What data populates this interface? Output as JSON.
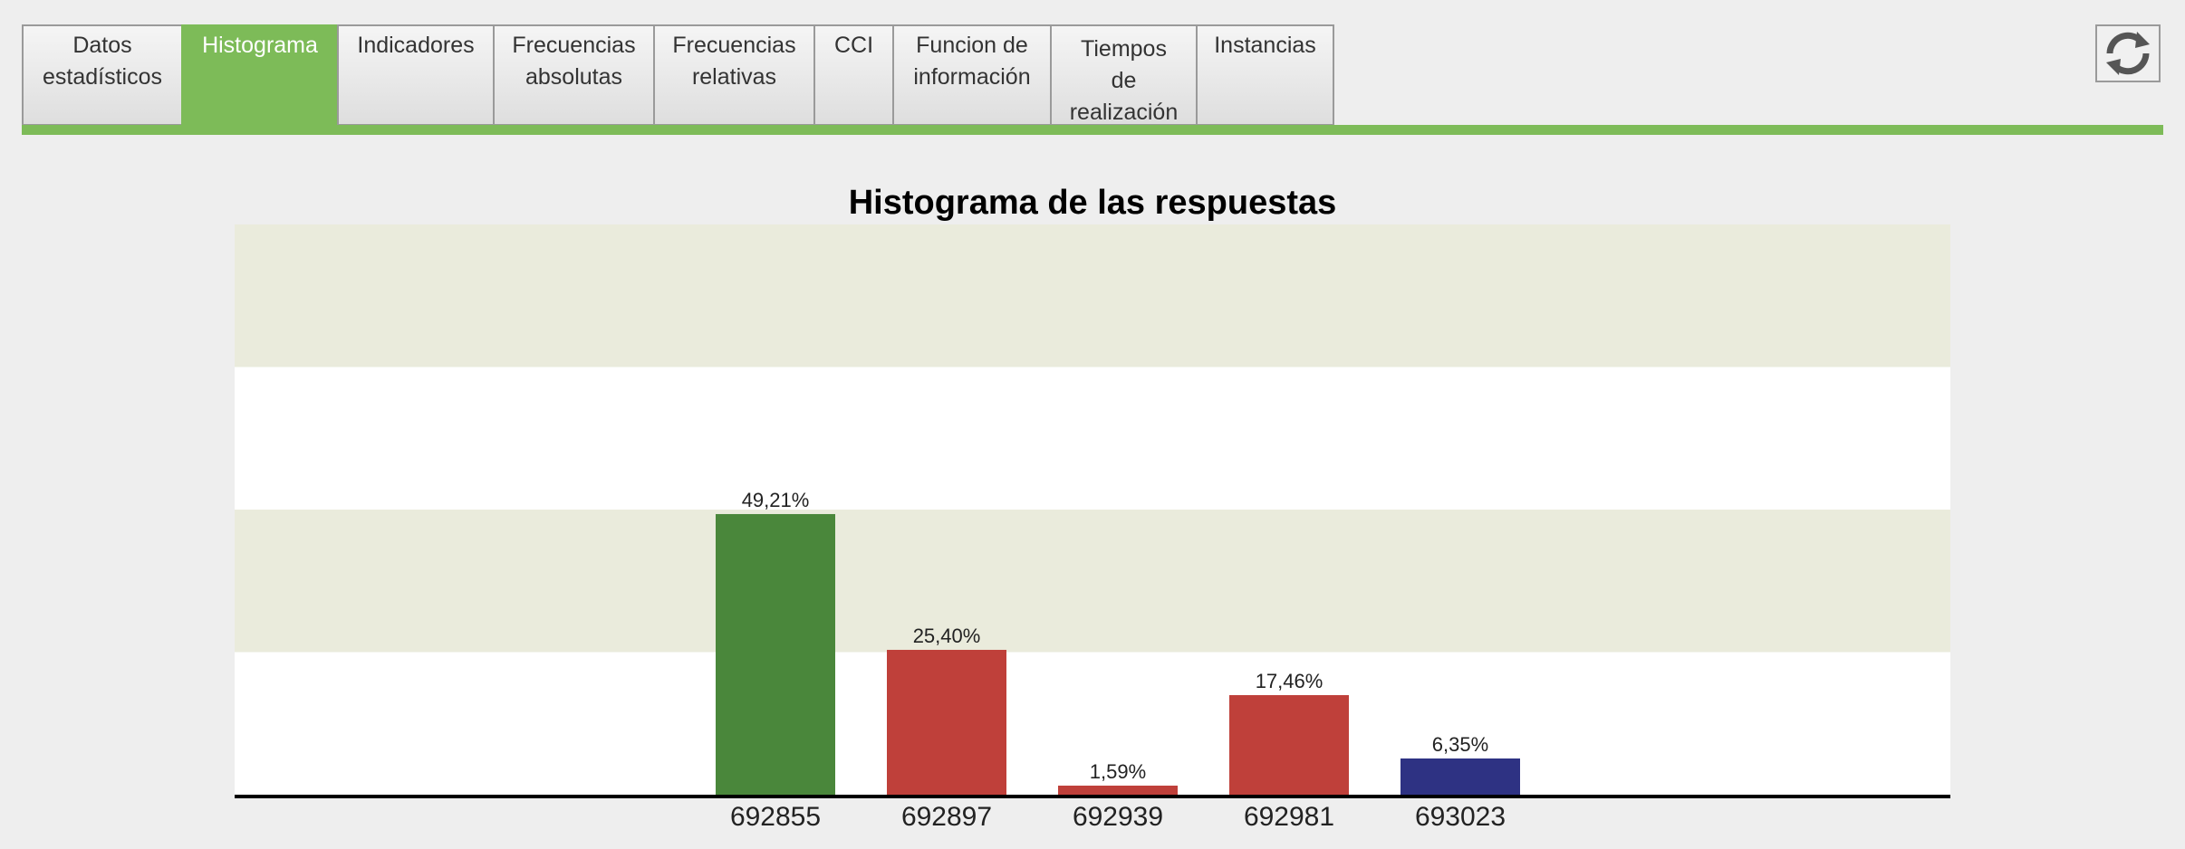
{
  "tabs": [
    {
      "label": "Datos\nestadísticos",
      "active": false
    },
    {
      "label": "Histograma",
      "active": true
    },
    {
      "label": "Indicadores",
      "active": false
    },
    {
      "label": "Frecuencias\nabsolutas",
      "active": false
    },
    {
      "label": "Frecuencias\nrelativas",
      "active": false
    },
    {
      "label": "CCI",
      "active": false
    },
    {
      "label": "Funcion de\ninformación",
      "active": false
    },
    {
      "label": "Tiempos\nde\nrealización",
      "active": false
    },
    {
      "label": "Instancias",
      "active": false
    }
  ],
  "colors": {
    "accent": "#7dbb58",
    "band": "#eaebdc"
  },
  "refresh_icon": "refresh-icon",
  "chart_data": {
    "type": "bar",
    "title": "Histograma de las respuestas",
    "xlabel": "",
    "ylabel": "",
    "categories": [
      "692855",
      "692897",
      "692939",
      "692981",
      "693023"
    ],
    "values": [
      49.21,
      25.4,
      1.59,
      17.46,
      6.35
    ],
    "labels": [
      "49,21%",
      "25,40%",
      "1,59%",
      "17,46%",
      "6,35%"
    ],
    "colors": [
      "#4a873b",
      "#bf403a",
      "#bf403a",
      "#bf403a",
      "#2e3283"
    ],
    "ylim": [
      0,
      100
    ],
    "grid_bands": true,
    "legend": "none"
  }
}
